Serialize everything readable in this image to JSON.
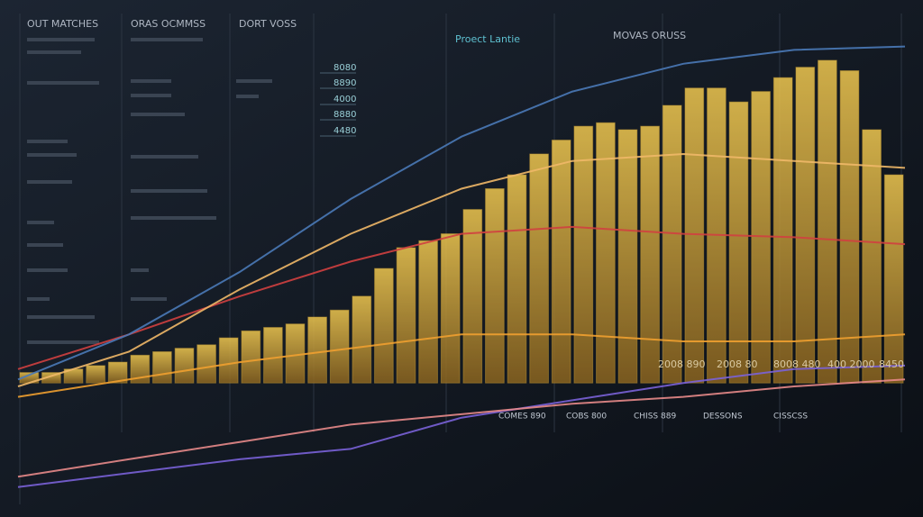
{
  "chart_data": {
    "type": "bar",
    "title": "MOVAS ORUSS",
    "subtitle": "Proect Lantie",
    "headers": [
      "OUT MATCHES",
      "ORAS OCMMSS",
      "DORT VOSS"
    ],
    "scale_labels": [
      "8080",
      "8890",
      "4000",
      "8880",
      "4480"
    ],
    "value_notes": [
      "2008 890",
      "2008 80",
      "8008 480",
      "400 2000",
      "8450"
    ],
    "column_labels": [
      "COMES 890",
      "COBS 800",
      "CHISS 889",
      "DESSONS",
      "CISSCSS"
    ],
    "categories": [
      null,
      null,
      null,
      null,
      null,
      null,
      null,
      null,
      null,
      null,
      null,
      null,
      null,
      null,
      null,
      null,
      null,
      null,
      null,
      null,
      null,
      null,
      null,
      null,
      null,
      null,
      null,
      null,
      null,
      null,
      null,
      null,
      null,
      null,
      null,
      null,
      null,
      null,
      null,
      null
    ],
    "values": [
      3,
      3,
      4,
      5,
      6,
      8,
      9,
      10,
      11,
      13,
      15,
      16,
      17,
      19,
      21,
      25,
      33,
      39,
      41,
      43,
      50,
      56,
      60,
      66,
      70,
      74,
      75,
      73,
      74,
      80,
      85,
      85,
      81,
      84,
      88,
      91,
      93,
      90,
      73,
      60
    ],
    "color": "#d9a935",
    "ylim": [
      -35,
      100
    ],
    "lines": [
      {
        "color": "#7a62d8",
        "values": [
          -30,
          -26,
          -22,
          -19,
          -10,
          -5,
          0,
          4,
          5
        ]
      },
      {
        "color": "#e88a8a",
        "values": [
          -27,
          -22,
          -17,
          -12,
          -9,
          -6,
          -4,
          -1,
          1
        ]
      },
      {
        "color": "#f0a030",
        "values": [
          -4,
          1,
          6,
          10,
          14,
          14,
          12,
          12,
          14
        ]
      },
      {
        "color": "#d04040",
        "values": [
          4,
          14,
          25,
          35,
          43,
          45,
          43,
          42,
          40
        ]
      },
      {
        "color": "#f0b868",
        "values": [
          -1,
          9,
          27,
          43,
          56,
          64,
          66,
          64,
          62
        ]
      },
      {
        "color": "#4a7ab8",
        "values": [
          1,
          14,
          32,
          53,
          71,
          84,
          92,
          96,
          97
        ]
      }
    ]
  }
}
